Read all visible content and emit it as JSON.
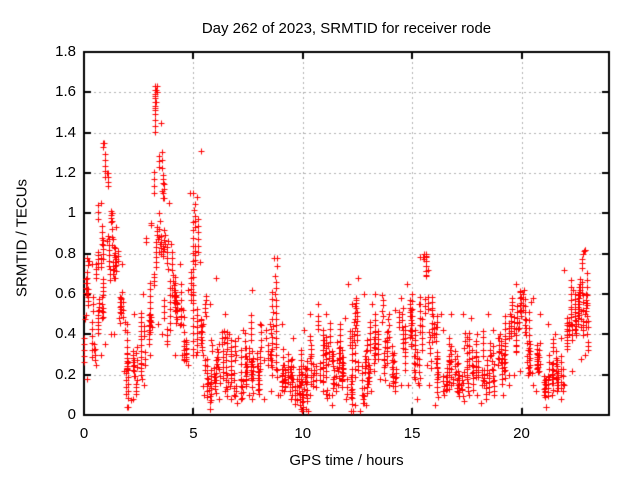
{
  "chart_data": {
    "type": "scatter",
    "title": "Day 262 of 2023, SRMTID for receiver rode",
    "xlabel": "GPS time / hours",
    "ylabel": "SRMTID / TECUs",
    "xlim": [
      0,
      24
    ],
    "ylim": [
      0,
      1.8
    ],
    "xticks": [
      0,
      5,
      10,
      15,
      20
    ],
    "xtick_labels": [
      "0",
      "5",
      "10",
      "15",
      "20"
    ],
    "yticks": [
      0,
      0.2,
      0.4,
      0.6,
      0.8,
      1,
      1.2,
      1.4,
      1.6,
      1.8
    ],
    "ytick_labels": [
      "0",
      "0.2",
      "0.4",
      "0.6",
      "0.8",
      "1",
      "1.2",
      "1.4",
      "1.6",
      "1.8"
    ],
    "grid": true,
    "grid_style": "dotted",
    "legend": "none",
    "marker": "plus",
    "marker_size_px": 7,
    "marker_color": "#ff0000",
    "grid_color": "#b0b0b0",
    "axis_color": "#000000",
    "background_color": "#ffffff",
    "data_time_range": [
      0,
      23.05
    ],
    "notable_points": [
      [
        0.88,
        1.33
      ],
      [
        0.9,
        1.35
      ],
      [
        3.33,
        1.63
      ],
      [
        3.35,
        1.6
      ],
      [
        5.0,
        1.1
      ],
      [
        5.35,
        1.31
      ],
      [
        8.8,
        0.78
      ],
      [
        8.82,
        0.74
      ],
      [
        12.08,
        0.65
      ],
      [
        15.55,
        0.8
      ],
      [
        20.42,
        0.56
      ],
      [
        22.9,
        0.82
      ]
    ],
    "outlier_points": [
      [
        1.95,
        0.04
      ],
      [
        5.75,
        0.03
      ],
      [
        9.95,
        0.02
      ],
      [
        10.15,
        0.03
      ],
      [
        12.2,
        0.02
      ],
      [
        12.9,
        0.05
      ],
      [
        21.1,
        0.04
      ],
      [
        11.55,
        0.36
      ]
    ],
    "density_segments_format": [
      "t_start_h",
      "t_end_h",
      "y_min_TECU",
      "y_max_TECU",
      "n_points",
      "shape 0=bottom-heavy band,1=tall spike column,2=mid-spread"
    ],
    "density_segments": [
      [
        0.0,
        0.25,
        0.18,
        0.78,
        26,
        1
      ],
      [
        0.25,
        0.55,
        0.25,
        0.75,
        16,
        0
      ],
      [
        0.55,
        0.8,
        0.3,
        1.05,
        28,
        1
      ],
      [
        0.8,
        1.0,
        0.35,
        1.35,
        28,
        1
      ],
      [
        1.0,
        1.3,
        0.4,
        1.2,
        26,
        1
      ],
      [
        1.3,
        1.6,
        0.4,
        0.93,
        24,
        2
      ],
      [
        1.6,
        1.9,
        0.22,
        0.75,
        22,
        2
      ],
      [
        1.9,
        2.2,
        0.04,
        0.45,
        24,
        0
      ],
      [
        2.2,
        2.5,
        0.08,
        0.5,
        22,
        0
      ],
      [
        2.5,
        2.8,
        0.15,
        0.6,
        24,
        0
      ],
      [
        2.8,
        3.1,
        0.3,
        0.95,
        26,
        1
      ],
      [
        3.1,
        3.4,
        0.45,
        1.63,
        34,
        1
      ],
      [
        3.4,
        3.65,
        0.4,
        1.45,
        30,
        1
      ],
      [
        3.65,
        3.95,
        0.35,
        1.05,
        28,
        1
      ],
      [
        3.95,
        4.2,
        0.3,
        0.85,
        24,
        2
      ],
      [
        4.2,
        4.5,
        0.3,
        0.75,
        22,
        2
      ],
      [
        4.5,
        4.8,
        0.25,
        0.62,
        22,
        0
      ],
      [
        4.8,
        5.05,
        0.3,
        1.1,
        28,
        1
      ],
      [
        5.05,
        5.3,
        0.3,
        1.08,
        26,
        1
      ],
      [
        5.3,
        5.6,
        0.1,
        0.76,
        26,
        0
      ],
      [
        5.6,
        5.9,
        0.03,
        0.55,
        26,
        0
      ],
      [
        5.9,
        6.2,
        0.08,
        0.68,
        24,
        0
      ],
      [
        6.2,
        6.55,
        0.12,
        0.5,
        24,
        0
      ],
      [
        6.55,
        6.9,
        0.08,
        0.4,
        24,
        0
      ],
      [
        6.9,
        7.25,
        0.06,
        0.38,
        24,
        0
      ],
      [
        7.25,
        7.6,
        0.1,
        0.42,
        24,
        0
      ],
      [
        7.6,
        7.95,
        0.08,
        0.62,
        26,
        0
      ],
      [
        7.95,
        8.3,
        0.08,
        0.45,
        24,
        0
      ],
      [
        8.3,
        8.6,
        0.12,
        0.45,
        22,
        0
      ],
      [
        8.6,
        8.95,
        0.1,
        0.78,
        26,
        0
      ],
      [
        8.95,
        9.3,
        0.1,
        0.45,
        24,
        0
      ],
      [
        9.3,
        9.6,
        0.08,
        0.38,
        24,
        0
      ],
      [
        9.6,
        9.95,
        0.03,
        0.32,
        26,
        0
      ],
      [
        9.95,
        10.3,
        0.02,
        0.42,
        26,
        0
      ],
      [
        10.3,
        10.65,
        0.1,
        0.5,
        24,
        0
      ],
      [
        10.65,
        11.0,
        0.12,
        0.55,
        26,
        0
      ],
      [
        11.0,
        11.35,
        0.05,
        0.5,
        26,
        0
      ],
      [
        11.35,
        11.7,
        0.1,
        0.45,
        24,
        0
      ],
      [
        11.7,
        12.0,
        0.08,
        0.48,
        24,
        0
      ],
      [
        12.0,
        12.3,
        0.02,
        0.55,
        26,
        0
      ],
      [
        12.3,
        12.6,
        0.05,
        0.68,
        28,
        2
      ],
      [
        12.6,
        12.95,
        0.02,
        0.6,
        26,
        0
      ],
      [
        12.95,
        13.3,
        0.12,
        0.55,
        24,
        0
      ],
      [
        13.3,
        13.65,
        0.18,
        0.6,
        26,
        2
      ],
      [
        13.65,
        14.0,
        0.15,
        0.5,
        24,
        0
      ],
      [
        14.0,
        14.35,
        0.12,
        0.52,
        24,
        0
      ],
      [
        14.35,
        14.7,
        0.15,
        0.58,
        26,
        2
      ],
      [
        14.7,
        15.05,
        0.15,
        0.65,
        26,
        2
      ],
      [
        15.05,
        15.35,
        0.08,
        0.55,
        24,
        0
      ],
      [
        15.35,
        15.7,
        0.25,
        0.8,
        30,
        1
      ],
      [
        15.7,
        16.0,
        0.15,
        0.72,
        26,
        2
      ],
      [
        16.0,
        16.35,
        0.05,
        0.5,
        24,
        0
      ],
      [
        16.35,
        16.7,
        0.1,
        0.42,
        24,
        0
      ],
      [
        16.7,
        17.05,
        0.12,
        0.5,
        24,
        0
      ],
      [
        17.05,
        17.4,
        0.07,
        0.5,
        24,
        0
      ],
      [
        17.4,
        17.75,
        0.1,
        0.48,
        24,
        0
      ],
      [
        17.75,
        18.1,
        0.1,
        0.4,
        24,
        0
      ],
      [
        18.1,
        18.45,
        0.06,
        0.5,
        24,
        0
      ],
      [
        18.45,
        18.8,
        0.1,
        0.42,
        22,
        0
      ],
      [
        18.8,
        19.15,
        0.1,
        0.4,
        22,
        0
      ],
      [
        19.15,
        19.5,
        0.15,
        0.5,
        24,
        0
      ],
      [
        19.5,
        19.85,
        0.2,
        0.65,
        28,
        2
      ],
      [
        19.85,
        20.2,
        0.22,
        0.62,
        26,
        2
      ],
      [
        20.2,
        20.55,
        0.15,
        0.58,
        24,
        0
      ],
      [
        20.55,
        20.9,
        0.12,
        0.5,
        22,
        0
      ],
      [
        20.9,
        21.25,
        0.04,
        0.45,
        24,
        0
      ],
      [
        21.25,
        21.6,
        0.1,
        0.4,
        22,
        0
      ],
      [
        21.6,
        21.95,
        0.08,
        0.38,
        22,
        0
      ],
      [
        21.95,
        22.3,
        0.15,
        0.72,
        26,
        2
      ],
      [
        22.3,
        22.6,
        0.22,
        0.62,
        26,
        2
      ],
      [
        22.6,
        22.85,
        0.28,
        0.8,
        28,
        1
      ],
      [
        22.85,
        23.05,
        0.3,
        0.82,
        24,
        1
      ]
    ]
  }
}
